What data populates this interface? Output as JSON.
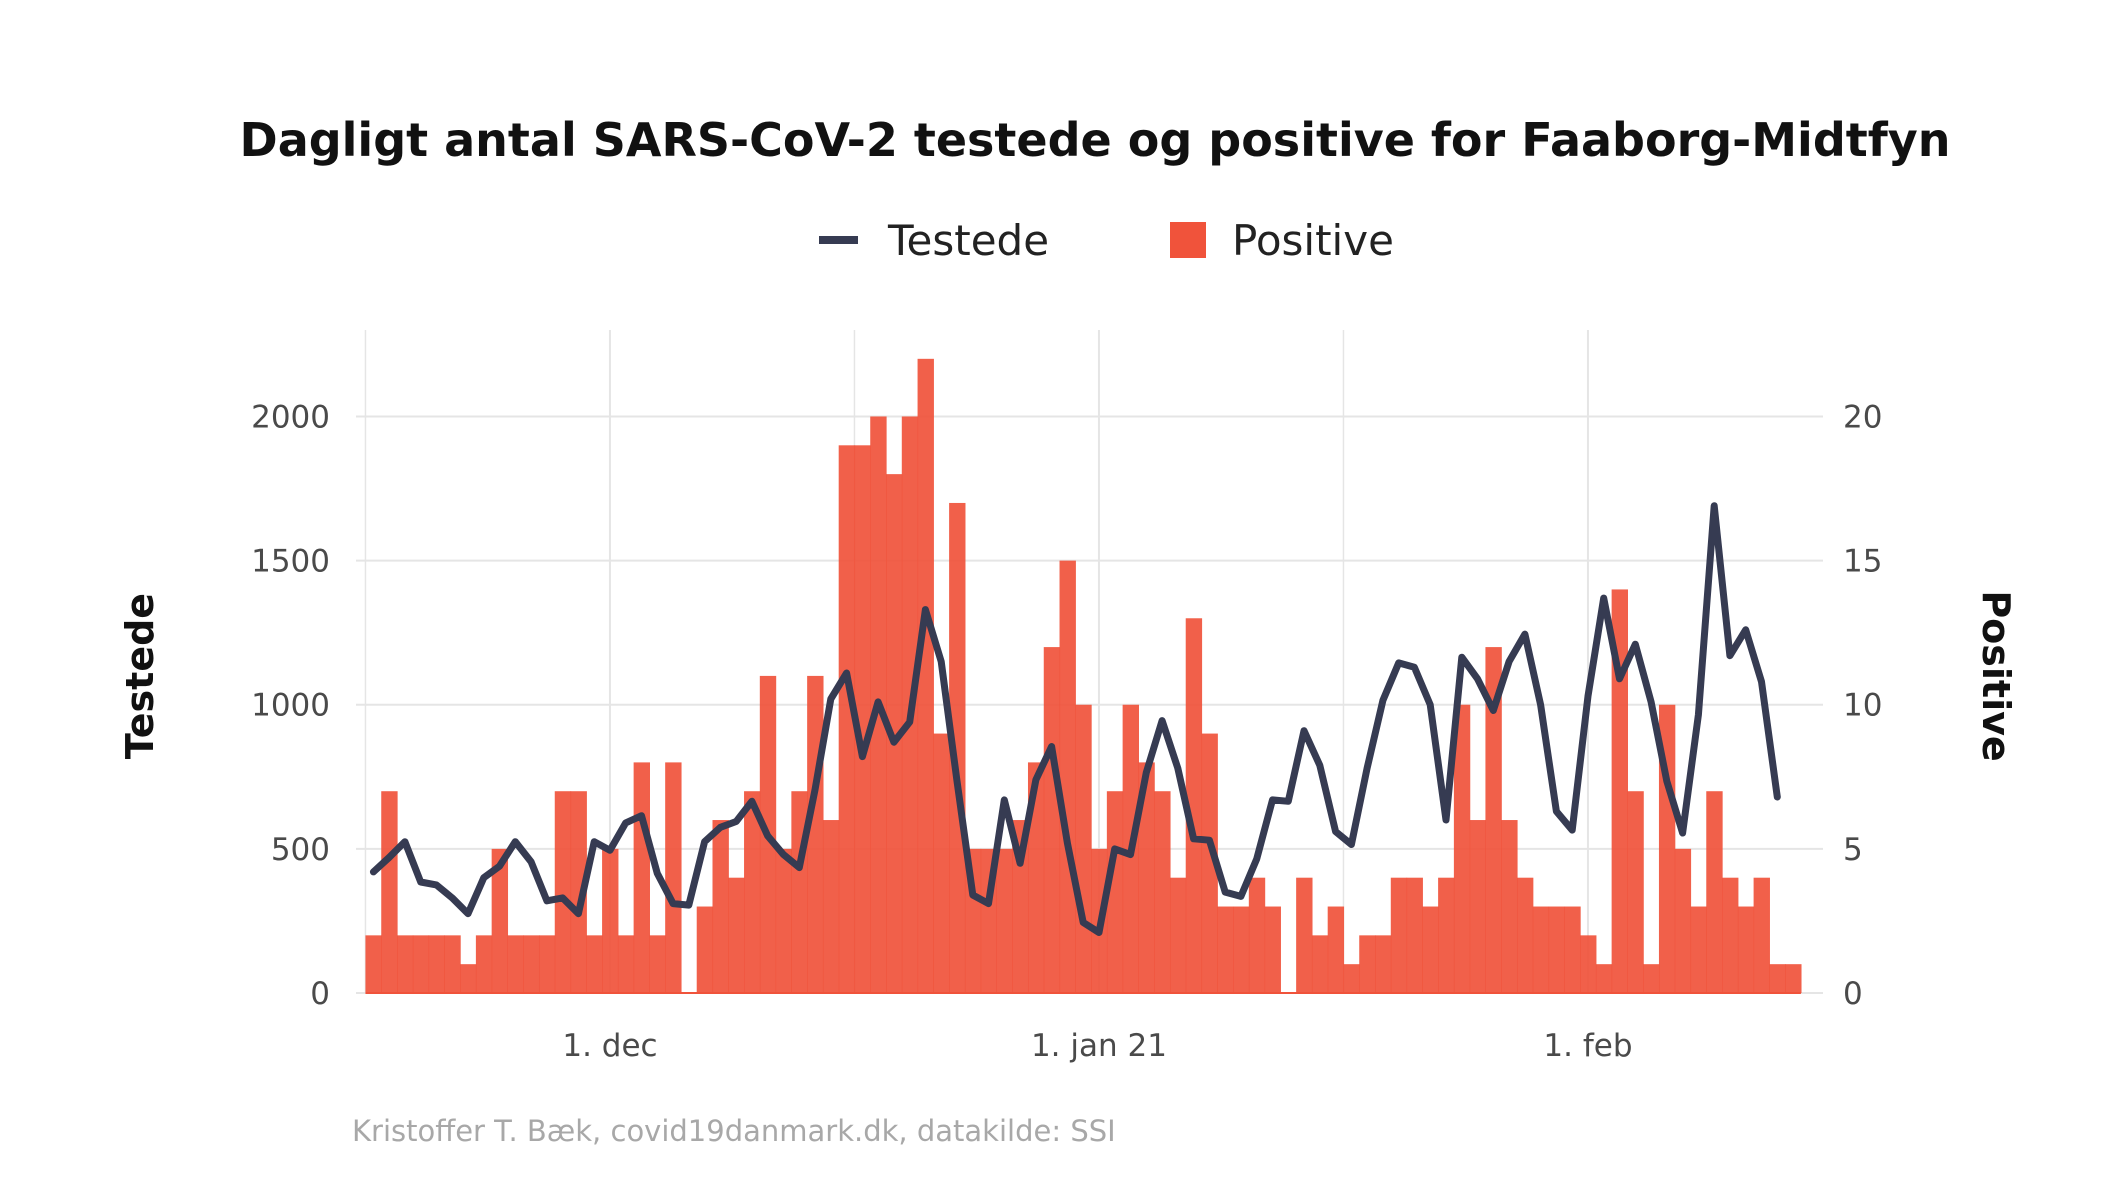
{
  "colors": {
    "positive_bar": "#f0533b",
    "testede_line": "#363b52",
    "grid": "#e5e5e5"
  },
  "chart_data": {
    "type": "bar",
    "title": "Dagligt antal SARS-CoV-2 testede og positive for Faaborg-Midtfyn",
    "caption": "Kristoffer T. Bæk, covid19danmark.dk, datakilde: SSI",
    "legend": {
      "position": "top",
      "entries": [
        "Testede",
        "Positive"
      ]
    },
    "grid": true,
    "x_ticks": [
      {
        "label": "1. dec",
        "day": 15
      },
      {
        "label": "1. jan 21",
        "day": 46
      },
      {
        "label": "1. feb",
        "day": 77
      }
    ],
    "x_range_days": [
      -1.1,
      91.9
    ],
    "y_left": {
      "label": "Testede",
      "lim": [
        0,
        2300
      ],
      "ticks": [
        0,
        500,
        1000,
        1500,
        2000
      ]
    },
    "y_right": {
      "label": "Positive",
      "lim": [
        0,
        23
      ],
      "ticks": [
        0,
        5,
        10,
        15,
        20
      ]
    },
    "series": [
      {
        "name": "Testede",
        "type": "line",
        "axis": "left",
        "values": [
          420,
          470,
          525,
          385,
          375,
          330,
          275,
          400,
          440,
          525,
          455,
          320,
          330,
          275,
          525,
          495,
          590,
          615,
          415,
          310,
          305,
          525,
          575,
          595,
          665,
          545,
          480,
          435,
          705,
          1020,
          1110,
          820,
          1010,
          870,
          940,
          1330,
          1150,
          735,
          340,
          310,
          670,
          450,
          740,
          855,
          520,
          245,
          210,
          500,
          480,
          765,
          945,
          780,
          535,
          530,
          350,
          335,
          465,
          670,
          665,
          910,
          790,
          560,
          515,
          780,
          1015,
          1145,
          1130,
          1000,
          600,
          1165,
          1090,
          980,
          1150,
          1245,
          1000,
          630,
          565,
          1030,
          1370,
          1090,
          1210,
          1010,
          735,
          555,
          965,
          1690,
          1170,
          1260,
          1080,
          680
        ]
      },
      {
        "name": "Positive",
        "type": "bar",
        "axis": "right",
        "values": [
          2,
          7,
          2,
          2,
          2,
          2,
          1,
          2,
          5,
          2,
          2,
          2,
          7,
          7,
          2,
          5,
          2,
          8,
          2,
          8,
          0,
          3,
          6,
          4,
          7,
          11,
          5,
          7,
          11,
          6,
          19,
          19,
          20,
          18,
          20,
          22,
          9,
          17,
          5,
          5,
          5,
          6,
          8,
          12,
          15,
          10,
          5,
          7,
          10,
          8,
          7,
          4,
          13,
          9,
          3,
          3,
          4,
          3,
          0,
          4,
          2,
          3,
          1,
          2,
          2,
          4,
          4,
          3,
          4,
          10,
          6,
          12,
          6,
          4,
          3,
          3,
          3,
          2,
          1,
          14,
          7,
          1,
          10,
          5,
          3,
          7,
          4,
          3,
          4,
          1,
          1
        ]
      }
    ]
  }
}
